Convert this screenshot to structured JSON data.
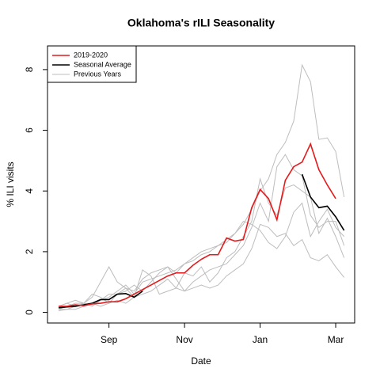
{
  "chart_data": {
    "type": "line",
    "title": "Oklahoma's rILI Seasonality",
    "xlabel": "Date",
    "ylabel": "% ILI visits",
    "x": [
      1,
      2,
      3,
      4,
      5,
      6,
      7,
      8,
      9,
      10,
      11,
      12,
      13,
      14,
      15,
      16,
      17,
      18,
      19,
      20,
      21,
      22,
      23,
      24,
      25,
      26,
      27,
      28,
      29,
      30,
      31,
      32,
      33,
      34,
      35
    ],
    "xlim": [
      -0.32,
      36.26
    ],
    "xticks": [
      {
        "value": 7,
        "label": "Sep"
      },
      {
        "value": 16,
        "label": "Nov"
      },
      {
        "value": 25,
        "label": "Jan"
      },
      {
        "value": 34,
        "label": "Mar"
      }
    ],
    "ylim": [
      -0.35,
      8.78
    ],
    "yticks": [
      0,
      2,
      4,
      6,
      8
    ],
    "legend": "top-left",
    "series": [
      {
        "name": "2019-2020",
        "color": "#e41a1c",
        "width": 1.6,
        "values": [
          [
            0.2,
            0.2,
            0.25,
            0.22,
            0.28,
            0.3,
            0.35,
            0.35,
            0.45,
            0.6,
            0.75,
            0.9,
            1.05,
            1.2,
            1.3,
            1.3,
            1.55,
            1.75,
            1.9,
            1.9,
            2.45,
            2.35,
            2.4,
            3.45,
            4.05,
            3.75,
            3.05,
            4.35,
            4.8,
            4.95,
            5.55,
            4.7,
            4.2,
            3.75,
            null
          ]
        ]
      },
      {
        "name": "Seasonal Average",
        "color": "#000000",
        "width": 1.6,
        "values": [
          [
            0.15,
            0.18,
            0.2,
            0.25,
            0.3,
            0.42,
            0.42,
            0.6,
            0.62,
            0.5,
            0.7,
            null,
            null,
            null,
            null,
            null,
            null,
            null,
            null,
            null,
            null,
            null,
            null,
            null,
            null,
            null,
            null,
            null,
            null,
            4.55,
            3.8,
            3.45,
            3.5,
            3.15,
            2.7
          ]
        ]
      },
      {
        "name": "Previous Years",
        "color": "#bdbdbd",
        "width": 1,
        "values": [
          [
            0.1,
            0.2,
            0.3,
            0.3,
            0.25,
            0.4,
            0.5,
            0.7,
            0.9,
            0.6,
            1.0,
            1.1,
            1.2,
            1.3,
            1.4,
            1.6,
            1.7,
            1.9,
            2.0,
            2.2,
            2.4,
            2.6,
            2.9,
            3.4,
            4.0,
            4.4,
            5.2,
            5.6,
            6.3,
            8.15,
            7.6,
            5.7,
            5.75,
            5.3,
            3.8
          ],
          [
            0.2,
            0.3,
            0.4,
            0.3,
            0.5,
            1.0,
            1.5,
            1.0,
            0.8,
            0.5,
            1.4,
            1.2,
            0.6,
            0.7,
            0.8,
            1.3,
            1.2,
            1.5,
            1.0,
            1.3,
            1.8,
            2.0,
            2.5,
            3.0,
            4.4,
            3.6,
            3.2,
            4.1,
            4.2,
            4.0,
            3.8,
            2.6,
            3.1,
            2.5,
            1.8
          ],
          [
            0.1,
            0.1,
            0.2,
            0.3,
            0.6,
            0.5,
            0.3,
            0.6,
            0.7,
            0.9,
            0.7,
            1.0,
            1.3,
            1.5,
            1.1,
            0.7,
            1.0,
            1.2,
            1.4,
            1.5,
            1.6,
            1.9,
            2.2,
            2.8,
            3.6,
            3.0,
            4.8,
            5.2,
            4.7,
            4.5,
            3.2,
            2.8,
            3.0,
            3.0,
            2.2
          ],
          [
            0.05,
            0.1,
            0.1,
            0.2,
            0.3,
            0.2,
            0.3,
            0.4,
            0.3,
            0.5,
            0.6,
            0.7,
            0.9,
            1.1,
            0.8,
            0.7,
            0.8,
            0.9,
            0.8,
            0.9,
            1.2,
            1.4,
            1.6,
            2.1,
            2.9,
            2.8,
            2.5,
            2.6,
            2.2,
            2.4,
            1.8,
            1.7,
            1.9,
            1.5,
            1.15
          ],
          [
            0.2,
            0.3,
            0.2,
            0.3,
            0.2,
            0.4,
            0.6,
            0.6,
            0.8,
            0.7,
            1.1,
            1.3,
            1.4,
            1.5,
            1.3,
            1.6,
            1.8,
            2.0,
            2.1,
            2.2,
            2.3,
            2.6,
            3.0,
            2.9,
            2.7,
            2.3,
            2.1,
            2.5,
            3.3,
            3.6,
            2.5,
            3.0,
            3.4,
            2.8,
            2.5
          ]
        ]
      }
    ]
  }
}
